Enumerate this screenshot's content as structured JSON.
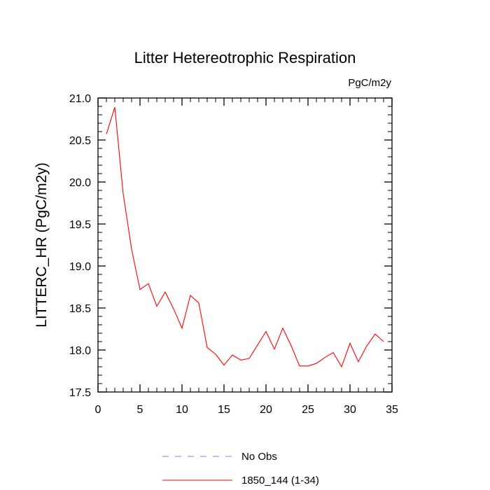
{
  "chart_data": {
    "type": "line",
    "title": "Litter Hetereotrophic Respiration",
    "units_label": "PgC/m2y",
    "xlabel": "",
    "ylabel": "LITTERC_HR  (PgC/m2y)",
    "xlim": [
      0,
      35
    ],
    "ylim": [
      17.5,
      21.0
    ],
    "x_ticks": [
      0,
      5,
      10,
      15,
      20,
      25,
      30,
      35
    ],
    "y_ticks": [
      17.5,
      18.0,
      18.5,
      19.0,
      19.5,
      20.0,
      20.5,
      21.0
    ],
    "x_tick_labels": [
      "0",
      "5",
      "10",
      "15",
      "20",
      "25",
      "30",
      "35"
    ],
    "y_tick_labels": [
      "17.5",
      "18.0",
      "18.5",
      "19.0",
      "19.5",
      "20.0",
      "20.5",
      "21.0"
    ],
    "grid": false,
    "legend_position": "bottom",
    "series": [
      {
        "name": "1850_144 (1-34)",
        "color": "#ff0000",
        "style": "solid",
        "x": [
          1,
          2,
          3,
          4,
          5,
          6,
          7,
          8,
          9,
          10,
          11,
          12,
          13,
          14,
          15,
          16,
          17,
          18,
          19,
          20,
          21,
          22,
          23,
          24,
          25,
          26,
          27,
          28,
          29,
          30,
          31,
          32,
          33,
          34
        ],
        "y": [
          20.57,
          20.89,
          19.86,
          19.2,
          18.72,
          18.79,
          18.52,
          18.69,
          18.49,
          18.26,
          18.65,
          18.56,
          18.03,
          17.95,
          17.82,
          17.94,
          17.88,
          17.9,
          18.06,
          18.22,
          18.01,
          18.26,
          18.05,
          17.81,
          17.81,
          17.84,
          17.91,
          17.97,
          17.8,
          18.08,
          17.86,
          18.05,
          18.19,
          18.1
        ]
      }
    ],
    "legend": [
      {
        "label": "No Obs",
        "color": "#7f7fff",
        "style": "dashed"
      },
      {
        "label": "1850_144 (1-34)",
        "color": "#ff0000",
        "style": "solid"
      }
    ]
  }
}
